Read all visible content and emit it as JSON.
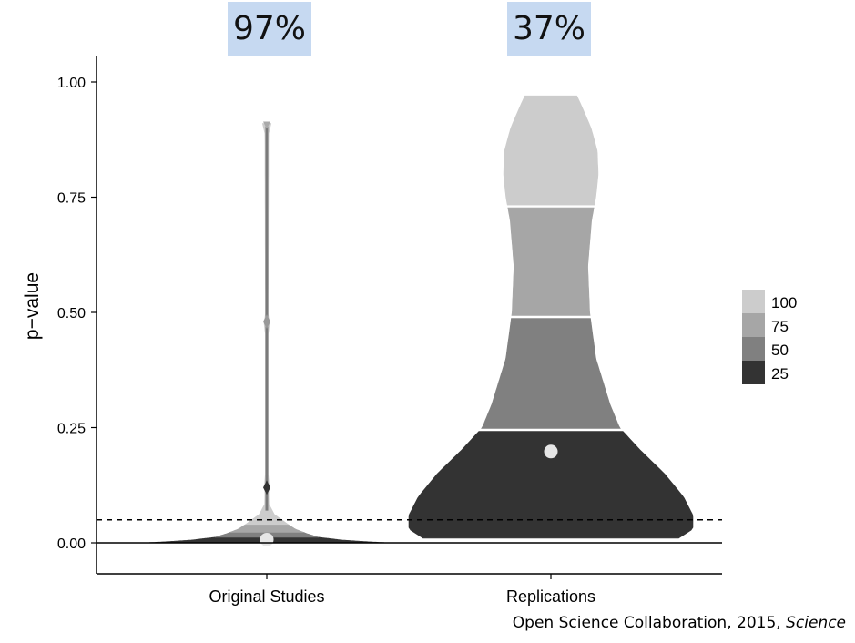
{
  "badges": [
    "97%",
    "37%"
  ],
  "citation": {
    "text": "Open Science Collaboration, 2015, ",
    "journal": "Science"
  },
  "chart_data": {
    "type": "violin",
    "ylabel": "p−value",
    "xlabel": "",
    "ylim": [
      -0.07,
      1.05
    ],
    "yticks": [
      0.0,
      0.25,
      0.5,
      0.75,
      1.0
    ],
    "ytick_labels": [
      "0.00",
      "0.25",
      "0.50",
      "0.75",
      "1.00"
    ],
    "categories": [
      "Original Studies",
      "Replications"
    ],
    "significance_threshold": 0.05,
    "grid": false,
    "legend": {
      "position": "right",
      "entries": [
        {
          "label": "100",
          "color": "#cccccc"
        },
        {
          "label": "75",
          "color": "#a6a6a6"
        },
        {
          "label": "50",
          "color": "#808080"
        },
        {
          "label": "25",
          "color": "#333333"
        }
      ]
    },
    "series": [
      {
        "category": "Original Studies",
        "mean": 0.007,
        "quartile_breaks": [
          0.012,
          0.023,
          0.04,
          0.91
        ],
        "density": [
          {
            "y": 0.0,
            "w": 0.26
          },
          {
            "y": 0.002,
            "w": 0.22
          },
          {
            "y": 0.006,
            "w": 0.16
          },
          {
            "y": 0.012,
            "w": 0.11
          },
          {
            "y": 0.02,
            "w": 0.085
          },
          {
            "y": 0.03,
            "w": 0.06
          },
          {
            "y": 0.042,
            "w": 0.042
          },
          {
            "y": 0.055,
            "w": 0.025
          },
          {
            "y": 0.07,
            "w": 0.005
          },
          {
            "y": 0.11,
            "w": 0.004
          },
          {
            "y": 0.12,
            "w": 0.009
          },
          {
            "y": 0.13,
            "w": 0.003
          },
          {
            "y": 0.47,
            "w": 0.003
          },
          {
            "y": 0.48,
            "w": 0.008
          },
          {
            "y": 0.49,
            "w": 0.003
          },
          {
            "y": 0.9,
            "w": 0.004
          },
          {
            "y": 0.91,
            "w": 0.009
          }
        ]
      },
      {
        "category": "Replications",
        "mean": 0.198,
        "quartile_breaks": [
          0.245,
          0.49,
          0.73,
          0.97
        ],
        "density": [
          {
            "y": 0.01,
            "w": 0.27
          },
          {
            "y": 0.03,
            "w": 0.3
          },
          {
            "y": 0.06,
            "w": 0.3
          },
          {
            "y": 0.1,
            "w": 0.28
          },
          {
            "y": 0.15,
            "w": 0.24
          },
          {
            "y": 0.2,
            "w": 0.19
          },
          {
            "y": 0.25,
            "w": 0.145
          },
          {
            "y": 0.3,
            "w": 0.125
          },
          {
            "y": 0.4,
            "w": 0.095
          },
          {
            "y": 0.5,
            "w": 0.082
          },
          {
            "y": 0.6,
            "w": 0.078
          },
          {
            "y": 0.7,
            "w": 0.086
          },
          {
            "y": 0.75,
            "w": 0.095
          },
          {
            "y": 0.8,
            "w": 0.1
          },
          {
            "y": 0.85,
            "w": 0.098
          },
          {
            "y": 0.9,
            "w": 0.085
          },
          {
            "y": 0.95,
            "w": 0.064
          },
          {
            "y": 0.97,
            "w": 0.055
          }
        ]
      }
    ]
  }
}
